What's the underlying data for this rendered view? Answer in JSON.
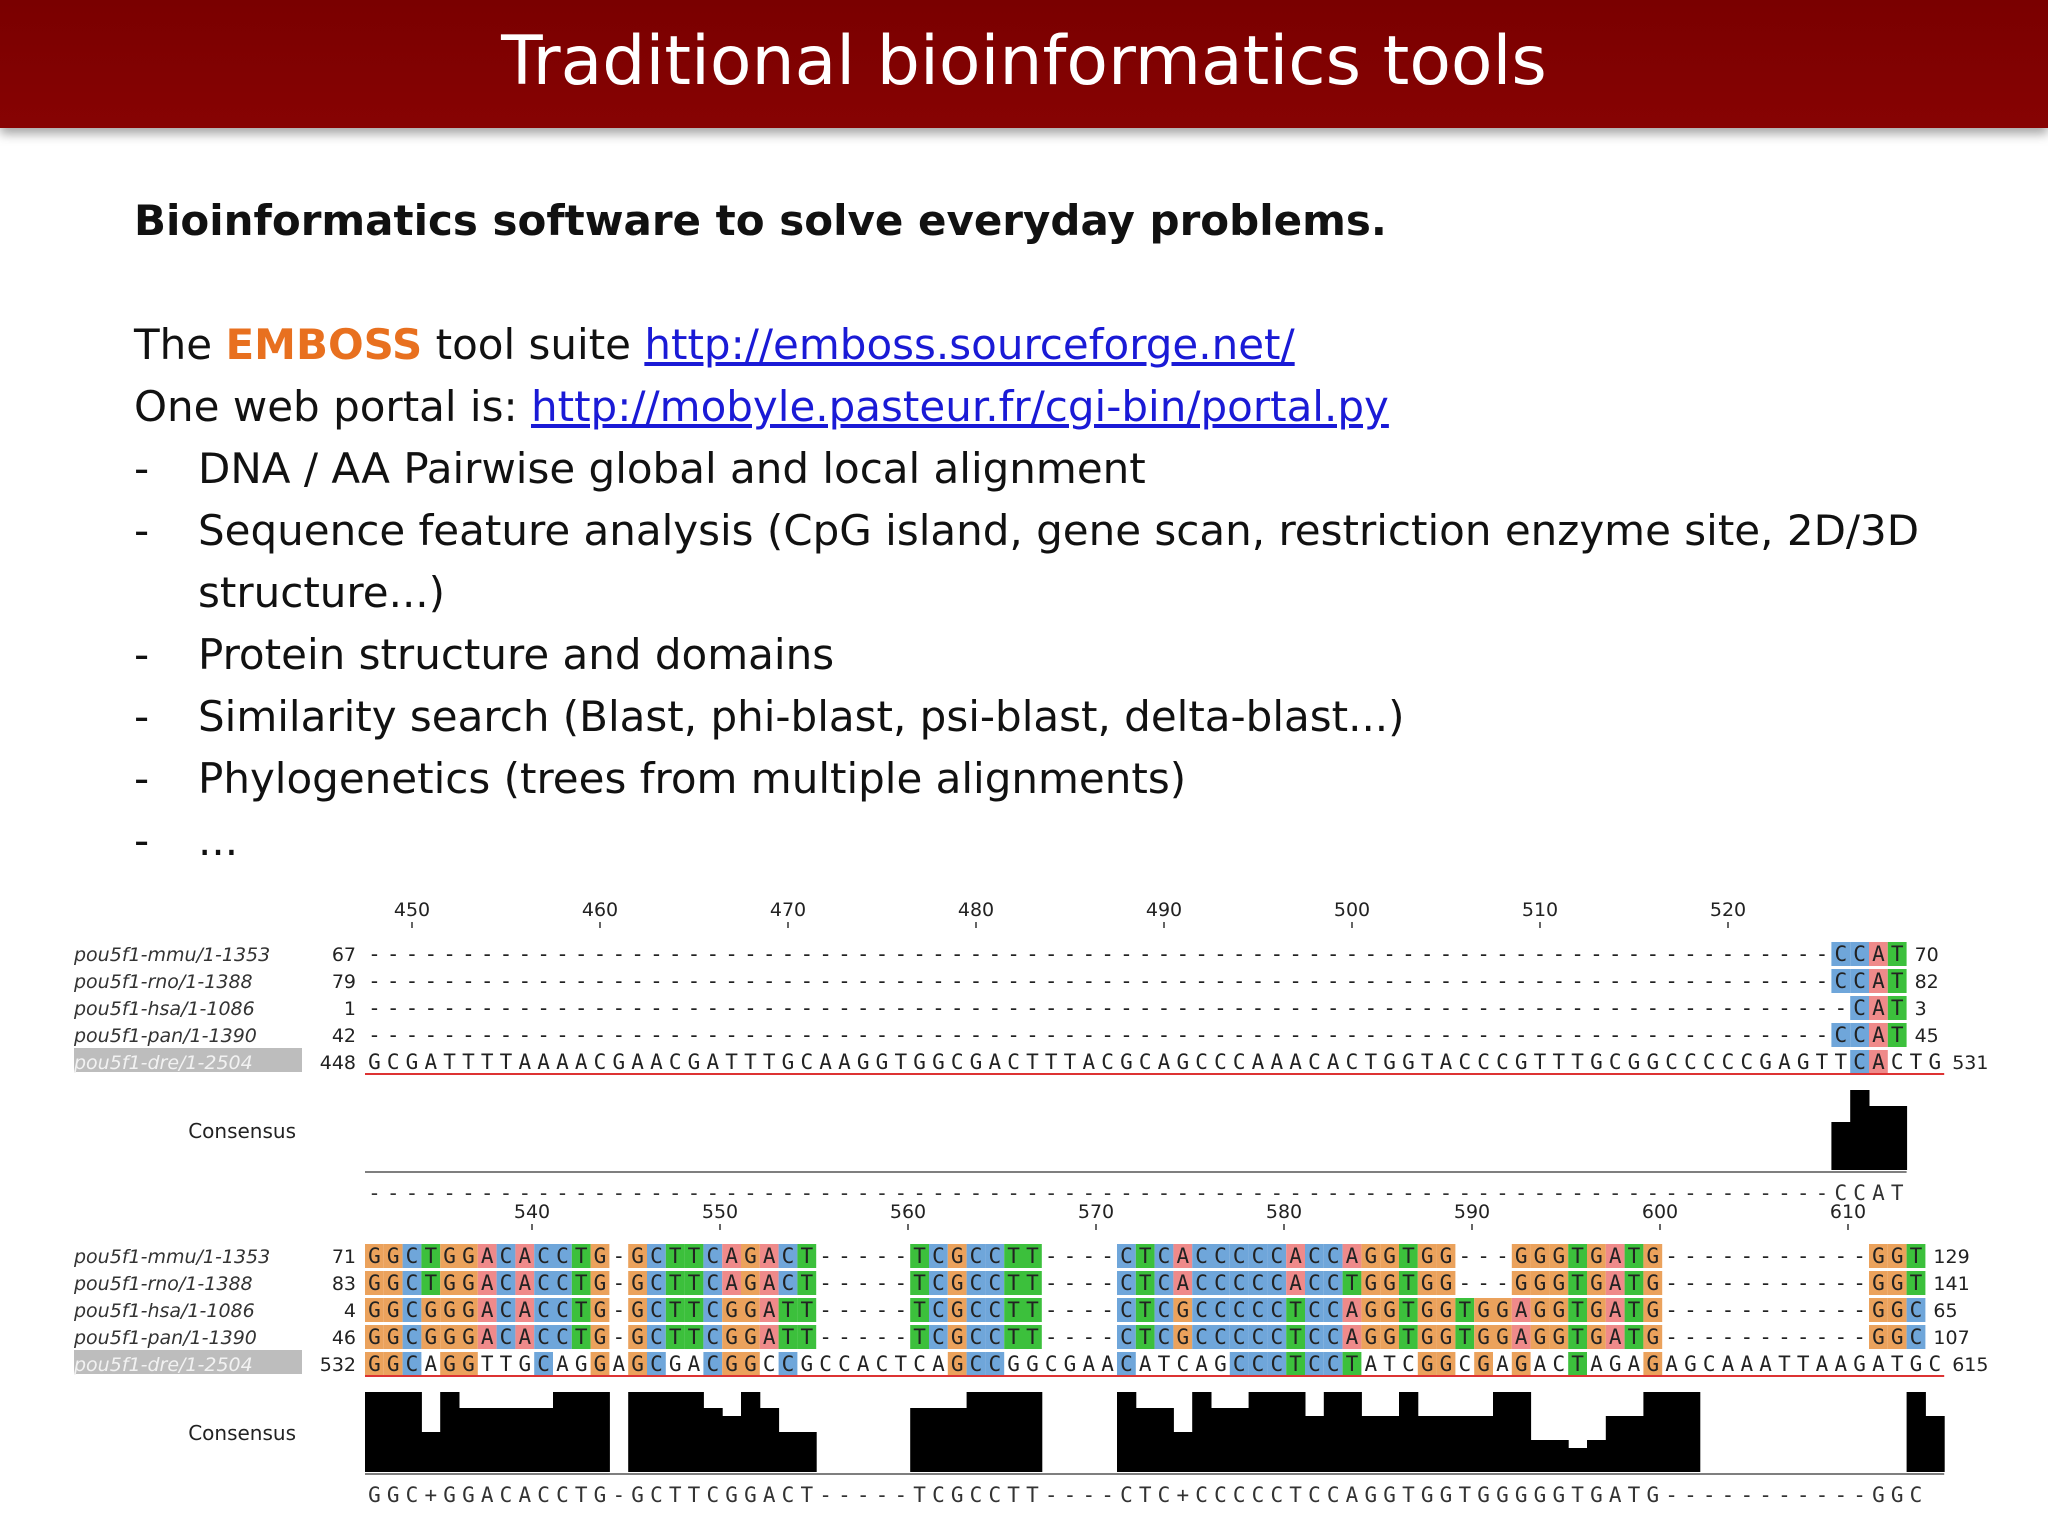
{
  "slide": {
    "title": "Traditional bioinformatics tools",
    "subtitle": "Bioinformatics software to solve everyday problems.",
    "line1_prefix": "The ",
    "line1_emboss": "EMBOSS",
    "line1_mid": " tool suite ",
    "line1_link": "http://emboss.sourceforge.net/",
    "line2_prefix": "One web portal is: ",
    "line2_link": "http://mobyle.pasteur.fr/cgi-bin/portal.py",
    "bullet_marker": "-",
    "bullets": [
      "DNA / AA Pairwise global and local alignment",
      "Sequence feature analysis (CpG island, gene scan, restriction enzyme site, 2D/3D structure...)",
      "Protein structure and domains",
      "Similarity search (Blast, phi-blast, psi-blast, delta-blast...)",
      "Phylogenetics (trees from multiple alignments)",
      "..."
    ]
  },
  "alignment": {
    "consensus_label": "Consensus",
    "colors": {
      "A": "#ef8a8a",
      "C": "#6fa6da",
      "G": "#eba25c",
      "T": "#3cc03c"
    },
    "blocks": [
      {
        "ruler": [
          "450",
          "460",
          "470",
          "480",
          "490",
          "500",
          "510",
          "520"
        ],
        "rows": [
          {
            "name": "pou5f1-mmu/1-1353",
            "start": "67",
            "seq": "------------------------------------------------------------------------------CCAT",
            "end": "70"
          },
          {
            "name": "pou5f1-rno/1-1388",
            "start": "79",
            "seq": "------------------------------------------------------------------------------CCAT",
            "end": "82"
          },
          {
            "name": "pou5f1-hsa/1-1086",
            "start": "1",
            "seq": "-------------------------------------------------------------------------------CAT",
            "end": "3"
          },
          {
            "name": "pou5f1-pan/1-1390",
            "start": "42",
            "seq": "------------------------------------------------------------------------------CCAT",
            "end": "45"
          },
          {
            "name": "pou5f1-dre/1-2504",
            "start": "448",
            "seq": "GCGATTTTAAAACGAACGATTTGCAAGGTGGCGACTTTACGCAGCCCAAACACTGGTACCCGTTTGCGGCCCCCGAGTTCACTG",
            "end": "531"
          }
        ],
        "consensus_levels": [
          0,
          0,
          0,
          0,
          0,
          0,
          0,
          0,
          0,
          0,
          0,
          0,
          0,
          0,
          0,
          0,
          0,
          0,
          0,
          0,
          0,
          0,
          0,
          0,
          0,
          0,
          0,
          0,
          0,
          0,
          0,
          0,
          0,
          0,
          0,
          0,
          0,
          0,
          0,
          0,
          0,
          0,
          0,
          0,
          0,
          0,
          0,
          0,
          0,
          0,
          0,
          0,
          0,
          0,
          0,
          0,
          0,
          0,
          0,
          0,
          0,
          0,
          0,
          0,
          0,
          0,
          0,
          0,
          0,
          0,
          0,
          0,
          0,
          0,
          0,
          0,
          0,
          0,
          0.6,
          1,
          0.8,
          0.8
        ],
        "consensus": "------------------------------------------------------------------------------CCAT"
      },
      {
        "ruler": [
          "540",
          "550",
          "560",
          "570",
          "580",
          "590",
          "600",
          "610"
        ],
        "rows": [
          {
            "name": "pou5f1-mmu/1-1353",
            "start": "71",
            "seq": "GGCTGGACACCTG-GCTTCAGACT-----TCGCCTT----CTCACCCCCACCAGGTGG---GGGTGATG-----------GGT",
            "end": "129"
          },
          {
            "name": "pou5f1-rno/1-1388",
            "start": "83",
            "seq": "GGCTGGACACCTG-GCTTCAGACT-----TCGCCTT----CTCACCCCCACCTGGTGG---GGGTGATG-----------GGT",
            "end": "141"
          },
          {
            "name": "pou5f1-hsa/1-1086",
            "start": "4",
            "seq": "GGCGGGACACCTG-GCTTCGGATT-----TCGCCTT----CTCGCCCCCTCCAGGTGGTGGAGGTGATG-----------GGC",
            "end": "65"
          },
          {
            "name": "pou5f1-pan/1-1390",
            "start": "46",
            "seq": "GGCGGGACACCTG-GCTTCGGATT-----TCGCCTT----CTCGCCCCCTCCAGGTGGTGGAGGTGATG-----------GGC",
            "end": "107"
          },
          {
            "name": "pou5f1-dre/1-2504",
            "start": "532",
            "seq": "GGCAGGTTGCAGGAGCGACGGCCGCCACTCAGCCGGCGAACATCAGCCCTCCTATCGGCGAGACTAGAGAGCAAATTAAGATGC",
            "end": "615"
          }
        ],
        "consensus_levels": [
          1,
          1,
          1,
          0.5,
          1,
          0.8,
          0.8,
          0.8,
          0.8,
          0.8,
          1,
          1,
          1,
          0,
          1,
          1,
          1,
          1,
          0.8,
          0.7,
          1,
          0.8,
          0.5,
          0.5,
          0,
          0,
          0,
          0,
          0,
          0.8,
          0.8,
          0.8,
          1,
          1,
          1,
          1,
          0,
          0,
          0,
          0,
          1,
          0.8,
          0.8,
          0.5,
          1,
          0.8,
          0.8,
          1,
          1,
          1,
          0.7,
          1,
          1,
          0.7,
          0.7,
          1,
          0.7,
          0.7,
          0.7,
          0.7,
          1,
          1,
          0.4,
          0.4,
          0.3,
          0.4,
          0.7,
          0.7,
          1,
          1,
          1,
          0,
          0,
          0,
          0,
          0,
          0,
          0,
          0,
          0,
          0,
          0,
          1,
          0.7
        ],
        "consensus": "GGC+GGACACCTG-GCTTCGGACT-----TCGCCTT----CTC+CCCCCTCCAGGTGGTGGGGGTGATG-----------GGC"
      }
    ]
  }
}
